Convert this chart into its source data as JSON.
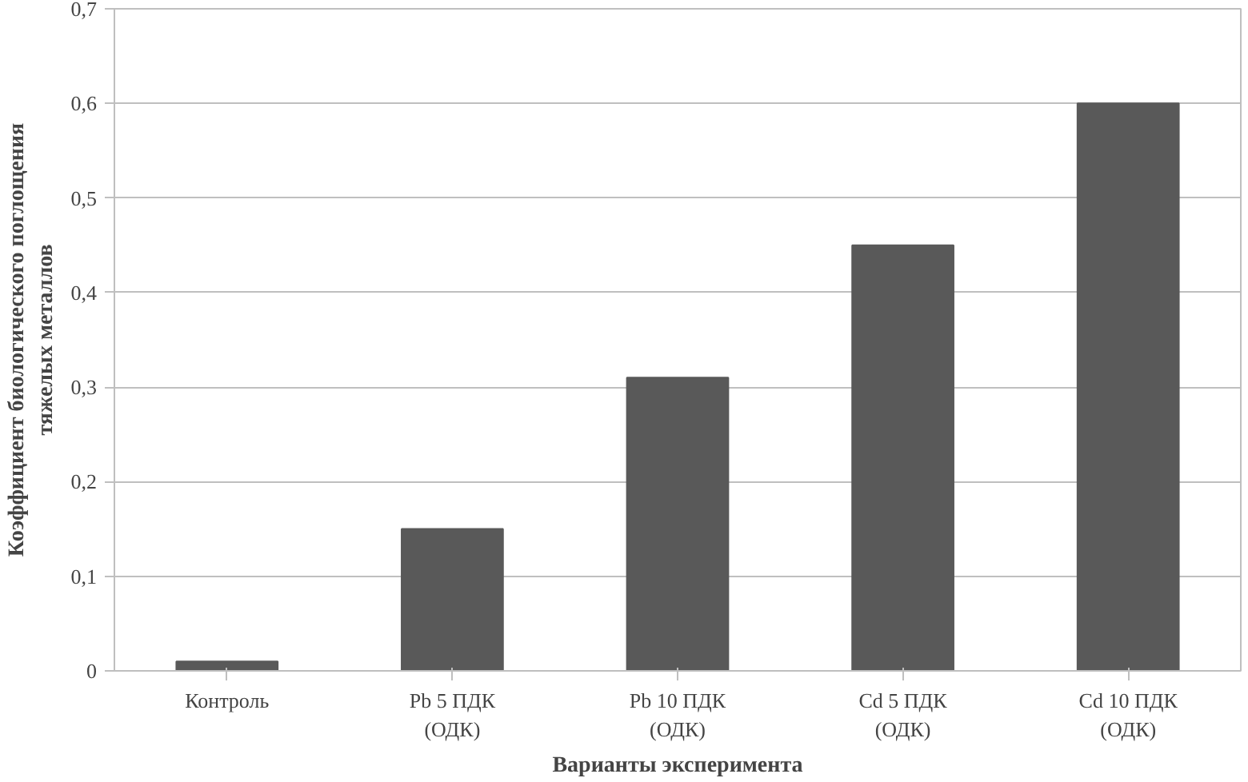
{
  "chart_data": {
    "type": "bar",
    "xlabel": "Варианты эксперимента",
    "ylabel": "Коэффициент биологического поглощения\nтяжелых металлов",
    "categories": [
      "Контроль",
      "Pb 5 ПДК\n(ОДК)",
      "Pb 10 ПДК\n(ОДК)",
      "Cd 5 ПДК\n(ОДК)",
      "Cd 10 ПДК\n(ОДК)"
    ],
    "values": [
      0.01,
      0.15,
      0.31,
      0.45,
      0.6
    ],
    "color": "#595959",
    "ylim": [
      0,
      0.7
    ],
    "yticks": [
      {
        "value": 0,
        "label": "0"
      },
      {
        "value": 0.1,
        "label": "0,1"
      },
      {
        "value": 0.2,
        "label": "0,2"
      },
      {
        "value": 0.3,
        "label": "0,3"
      },
      {
        "value": 0.4,
        "label": "0,4"
      },
      {
        "value": 0.5,
        "label": "0,5"
      },
      {
        "value": 0.6,
        "label": "0,6"
      },
      {
        "value": 0.7,
        "label": "0,7"
      }
    ],
    "grid": "y"
  }
}
